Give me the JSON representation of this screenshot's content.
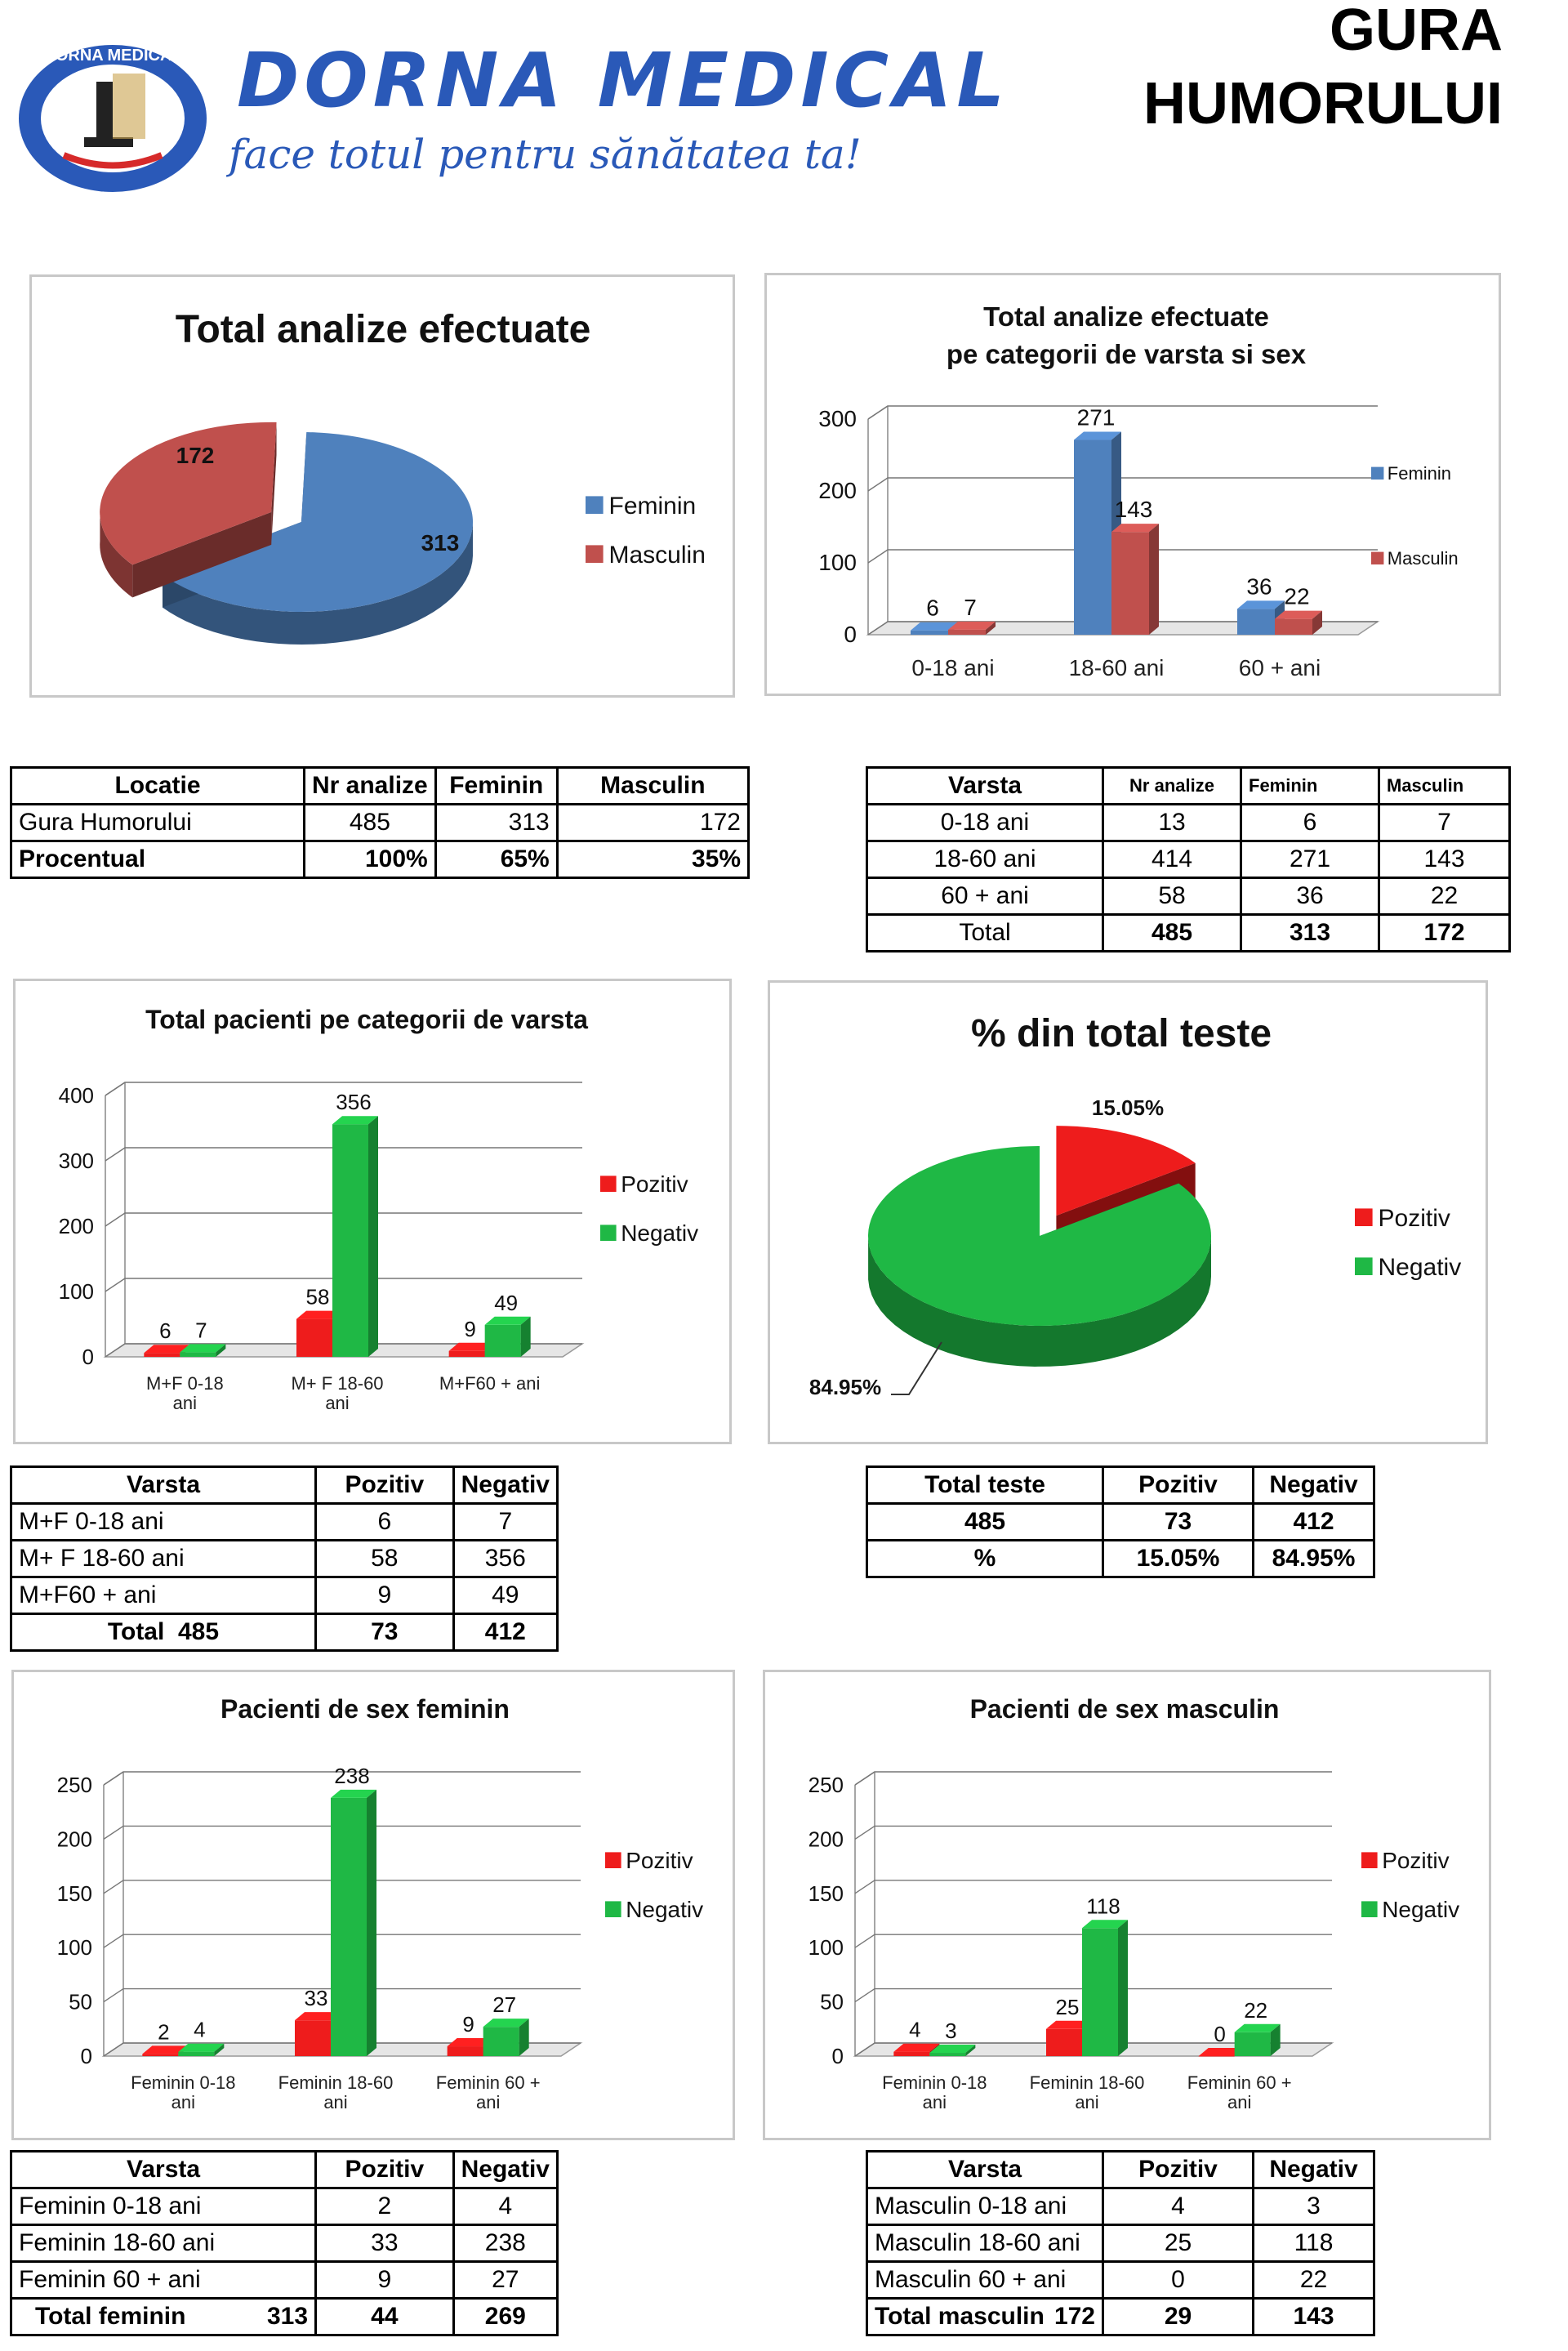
{
  "header": {
    "brand": "DORNA MEDICAL",
    "slogan": "face totul pentru sănătatea ta!",
    "logo_text": "DORNA MEDICAL",
    "city_line1": "GURA",
    "city_line2": "HUMORULUI",
    "brand_color": "#2a59b8"
  },
  "colors": {
    "feminin": "#4f81bd",
    "masculin": "#c0504d",
    "pozitiv": "#ee1c1c",
    "negativ": "#1fb845"
  },
  "chart_data": [
    {
      "type": "pie",
      "title": "Total analize efectuate",
      "labels": [
        "Feminin",
        "Masculin"
      ],
      "values": [
        313,
        172
      ],
      "legend": "right"
    },
    {
      "type": "bar",
      "title": "Total analize efectuate pe categorii de varsta si sex",
      "title_line1": "Total analize efectuate",
      "title_line2": "pe categorii de varsta si sex",
      "categories": [
        "0-18 ani",
        "18-60 ani",
        "60 + ani"
      ],
      "series": [
        {
          "name": "Feminin",
          "values": [
            6,
            271,
            36
          ]
        },
        {
          "name": "Masculin",
          "values": [
            7,
            143,
            22
          ]
        }
      ],
      "ylim": [
        0,
        300
      ],
      "yticks": [
        "0",
        "100",
        "200",
        "300"
      ],
      "legend": "right"
    },
    {
      "type": "bar",
      "title": "Total pacienti pe categorii de varsta",
      "categories": [
        "M+F 0-18 ani",
        "M+ F 18-60 ani",
        "M+F60 + ani"
      ],
      "series": [
        {
          "name": "Pozitiv",
          "values": [
            6,
            58,
            9
          ]
        },
        {
          "name": "Negativ",
          "values": [
            7,
            356,
            49
          ]
        }
      ],
      "ylim": [
        0,
        400
      ],
      "yticks": [
        "0",
        "100",
        "200",
        "300",
        "400"
      ],
      "legend": "right"
    },
    {
      "type": "pie",
      "title": "% din total teste",
      "labels": [
        "Pozitiv",
        "Negativ"
      ],
      "values": [
        15.05,
        84.95
      ],
      "value_labels": [
        "15.05%",
        "84.95%"
      ],
      "legend": "right"
    },
    {
      "type": "bar",
      "title": "Pacienti de sex feminin",
      "categories": [
        "Feminin 0-18 ani",
        "Feminin 18-60 ani",
        "Feminin 60 + ani"
      ],
      "series": [
        {
          "name": "Pozitiv",
          "values": [
            2,
            33,
            9
          ]
        },
        {
          "name": "Negativ",
          "values": [
            4,
            238,
            27
          ]
        }
      ],
      "ylim": [
        0,
        250
      ],
      "yticks": [
        "0",
        "50",
        "100",
        "150",
        "200",
        "250"
      ],
      "legend": "right"
    },
    {
      "type": "bar",
      "title": "Pacienti de sex masculin",
      "categories": [
        "Feminin 0-18 ani",
        "Feminin 18-60 ani",
        "Feminin 60 + ani"
      ],
      "series": [
        {
          "name": "Pozitiv",
          "values": [
            4,
            25,
            0
          ]
        },
        {
          "name": "Negativ",
          "values": [
            3,
            118,
            22
          ]
        }
      ],
      "ylim": [
        0,
        250
      ],
      "yticks": [
        "0",
        "50",
        "100",
        "150",
        "200",
        "250"
      ],
      "legend": "right"
    }
  ],
  "tables": {
    "locatie": {
      "headers": [
        "Locatie",
        "Nr analize",
        "Feminin",
        "Masculin"
      ],
      "rows": [
        [
          "Gura Humorului",
          "485",
          "313",
          "172"
        ],
        [
          "Procentual",
          "100%",
          "65%",
          "35%"
        ]
      ]
    },
    "varsta_sex": {
      "headers": [
        "Varsta",
        "Nr analize",
        "Feminin",
        "Masculin"
      ],
      "rows": [
        [
          "0-18 ani",
          "13",
          "6",
          "7"
        ],
        [
          "18-60 ani",
          "414",
          "271",
          "143"
        ],
        [
          "60 + ani",
          "58",
          "36",
          "22"
        ],
        [
          "Total",
          "485",
          "313",
          "172"
        ]
      ]
    },
    "varsta_poz": {
      "headers": [
        "Varsta",
        "Pozitiv",
        "Negativ"
      ],
      "rows": [
        [
          "M+F 0-18 ani",
          "6",
          "7"
        ],
        [
          "M+ F 18-60 ani",
          "58",
          "356"
        ],
        [
          "M+F60 + ani",
          "9",
          "49"
        ],
        [
          "Total  485",
          "73",
          "412"
        ]
      ]
    },
    "total_teste": {
      "headers": [
        "Total teste",
        "Pozitiv",
        "Negativ"
      ],
      "rows": [
        [
          "485",
          "73",
          "412"
        ],
        [
          "%",
          "15.05%",
          "84.95%"
        ]
      ]
    },
    "feminin": {
      "headers": [
        "Varsta",
        "Pozitiv",
        "Negativ"
      ],
      "rows": [
        [
          "Feminin 0-18 ani",
          "2",
          "4"
        ],
        [
          "Feminin 18-60 ani",
          "33",
          "238"
        ],
        [
          "Feminin 60 + ani",
          "9",
          "27"
        ]
      ],
      "total": {
        "label": "Total feminin",
        "count": "313",
        "pozitiv": "44",
        "negativ": "269"
      }
    },
    "masculin": {
      "headers": [
        "Varsta",
        "Pozitiv",
        "Negativ"
      ],
      "rows": [
        [
          "Masculin 0-18 ani",
          "4",
          "3"
        ],
        [
          "Masculin 18-60 ani",
          "25",
          "118"
        ],
        [
          "Masculin 60 + ani",
          "0",
          "22"
        ]
      ],
      "total": {
        "label": "Total masculin",
        "count": "172",
        "pozitiv": "29",
        "negativ": "143"
      }
    }
  }
}
